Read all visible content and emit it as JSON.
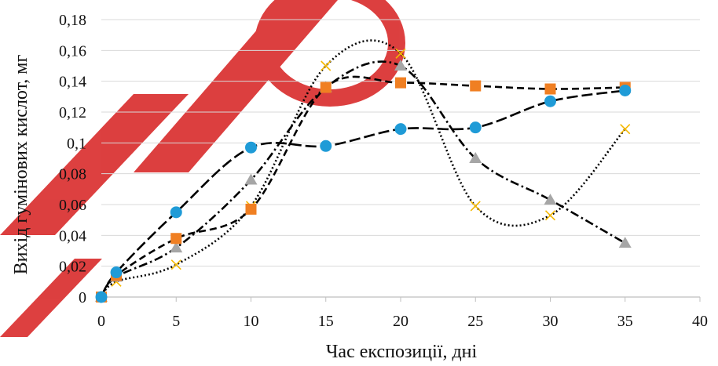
{
  "chart_data": {
    "type": "scatter",
    "xlabel": "Час експозиції, дні",
    "ylabel": "Вихід гумінових кислот, мг",
    "xlim": [
      0,
      40
    ],
    "ylim": [
      0,
      0.18
    ],
    "x_ticks": [
      "0",
      "5",
      "10",
      "15",
      "20",
      "25",
      "30",
      "35",
      "40"
    ],
    "y_ticks": [
      "0",
      "0,02",
      "0,04",
      "0,06",
      "0,08",
      "0,1",
      "0,12",
      "0,14",
      "0,16",
      "0,18"
    ],
    "grid": "horizontal",
    "legend": "none",
    "series": [
      {
        "marker": "circle",
        "color": "#1f9bd7",
        "trendline": "long-dash",
        "points": [
          [
            0,
            0.0
          ],
          [
            1,
            0.016
          ],
          [
            5,
            0.055
          ],
          [
            10,
            0.097
          ],
          [
            15,
            0.098
          ],
          [
            20,
            0.109
          ],
          [
            25,
            0.11
          ],
          [
            30,
            0.127
          ],
          [
            35,
            0.134
          ]
        ]
      },
      {
        "marker": "square",
        "color": "#f07f22",
        "trendline": "short-dash",
        "points": [
          [
            0,
            0.0
          ],
          [
            1,
            0.014
          ],
          [
            5,
            0.038
          ],
          [
            10,
            0.057
          ],
          [
            15,
            0.136
          ],
          [
            20,
            0.139
          ],
          [
            25,
            0.137
          ],
          [
            30,
            0.135
          ],
          [
            35,
            0.136
          ]
        ]
      },
      {
        "marker": "triangle",
        "color": "#a6a6a6",
        "trendline": "dash-dot",
        "points": [
          [
            0,
            0.0
          ],
          [
            1,
            0.013
          ],
          [
            5,
            0.032
          ],
          [
            10,
            0.076
          ],
          [
            15,
            0.136
          ],
          [
            20,
            0.15
          ],
          [
            25,
            0.09
          ],
          [
            30,
            0.063
          ],
          [
            35,
            0.035
          ]
        ]
      },
      {
        "marker": "x",
        "color": "#f5b800",
        "trendline": "dotted",
        "points": [
          [
            0,
            0.0
          ],
          [
            1,
            0.01
          ],
          [
            5,
            0.021
          ],
          [
            10,
            0.059
          ],
          [
            15,
            0.15
          ],
          [
            20,
            0.158
          ],
          [
            25,
            0.059
          ],
          [
            30,
            0.053
          ],
          [
            35,
            0.109
          ]
        ]
      }
    ]
  },
  "watermark": {
    "color": "#d10000",
    "opacity": 0.75
  }
}
